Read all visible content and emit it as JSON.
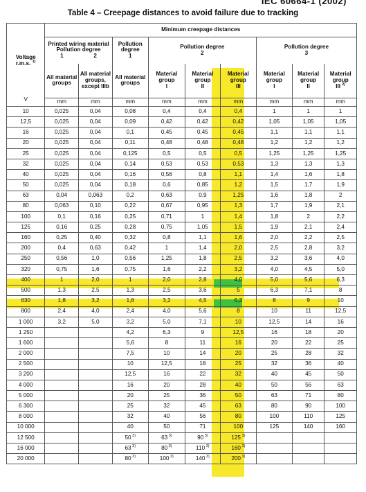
{
  "doc_id": "IEC 60664-1 (2002)",
  "title": "Table 4 – Creepage distances to avoid failure due to tracking",
  "header": {
    "voltage_label": "Voltage",
    "voltage_unit": "r.m.s.",
    "voltage_note": "1)",
    "minimum_label": "Minimum creepage distances",
    "printed_wiring": "Printed wiring material",
    "pollution_degree": "Pollution degree",
    "pd_col1": "1",
    "pd_col2": "2",
    "pollution_degree_1": "Pollution degree",
    "pd1": "1",
    "pollution_degree_2": "Pollution degree",
    "pd2": "2",
    "pollution_degree_3": "Pollution degree",
    "pd3": "3",
    "all_groups": "All material groups",
    "all_groups_except": "All material groups, except IIIb",
    "all_groups_pd1": "All material groups",
    "mg_label": "Material group",
    "mg_I": "I",
    "mg_II": "II",
    "mg_III": "III",
    "mg_III_note": "2)",
    "unit_v": "V",
    "unit_mm": "mm",
    "note3": "3)"
  },
  "rows": [
    [
      "10",
      "0,025",
      "0,04",
      "0,08",
      "0,4",
      "0,4",
      "0,4",
      "1",
      "1",
      "1"
    ],
    [
      "12,5",
      "0,025",
      "0,04",
      "0,09",
      "0,42",
      "0,42",
      "0,42",
      "1,05",
      "1,05",
      "1,05"
    ],
    [
      "16",
      "0,025",
      "0,04",
      "0,1",
      "0,45",
      "0,45",
      "0,45",
      "1,1",
      "1,1",
      "1,1"
    ],
    [
      "20",
      "0,025",
      "0,04",
      "0,11",
      "0,48",
      "0,48",
      "0,48",
      "1,2",
      "1,2",
      "1,2"
    ],
    [
      "25",
      "0,025",
      "0,04",
      "0,125",
      "0,5",
      "0,5",
      "0,5",
      "1,25",
      "1,25",
      "1,25"
    ],
    [
      "32",
      "0,025",
      "0,04",
      "0,14",
      "0,53",
      "0,53",
      "0,53",
      "1,3",
      "1,3",
      "1,3"
    ],
    [
      "40",
      "0,025",
      "0,04",
      "0,16",
      "0,56",
      "0,8",
      "1,1",
      "1,4",
      "1,6",
      "1,8"
    ],
    [
      "50",
      "0,025",
      "0,04",
      "0,18",
      "0,6",
      "0,85",
      "1,2",
      "1,5",
      "1,7",
      "1,9"
    ],
    [
      "63",
      "0,04",
      "0,063",
      "0,2",
      "0,63",
      "0,9",
      "1,25",
      "1,6",
      "1,8",
      "2"
    ],
    [
      "80",
      "0,063",
      "0,10",
      "0,22",
      "0,67",
      "0,95",
      "1,3",
      "1,7",
      "1,9",
      "2,1"
    ],
    [
      "100",
      "0,1",
      "0,16",
      "0,25",
      "0,71",
      "1",
      "1,4",
      "1,8",
      "2",
      "2,2"
    ],
    [
      "125",
      "0,16",
      "0,25",
      "0,28",
      "0,75",
      "1,05",
      "1,5",
      "1,9",
      "2,1",
      "2,4"
    ],
    [
      "160",
      "0,25",
      "0,40",
      "0,32",
      "0,8",
      "1,1",
      "1,6",
      "2,0",
      "2,2",
      "2,5"
    ],
    [
      "200",
      "0,4",
      "0,63",
      "0,42",
      "1",
      "1,4",
      "2,0",
      "2,5",
      "2,8",
      "3,2"
    ],
    [
      "250",
      "0,56",
      "1,0",
      "0,56",
      "1,25",
      "1,8",
      "2,5",
      "3,2",
      "3,6",
      "4,0"
    ],
    [
      "320",
      "0,75",
      "1,6",
      "0,75",
      "1,6",
      "2,2",
      "3,2",
      "4,0",
      "4,5",
      "5,0"
    ],
    [
      "400",
      "1",
      "2,0",
      "1",
      "2,0",
      "2,8",
      "4,0",
      "5,0",
      "5,6",
      "6,3"
    ],
    [
      "500",
      "1,3",
      "2,5",
      "1,3",
      "2,5",
      "3,6",
      "5",
      "6,3",
      "7,1",
      "8"
    ],
    [
      "630",
      "1,8",
      "3,2",
      "1,8",
      "3,2",
      "4,5",
      "6,3",
      "8",
      "9",
      "10"
    ],
    [
      "800",
      "2,4",
      "4,0",
      "2,4",
      "4,0",
      "5,6",
      "8",
      "10",
      "11",
      "12,5"
    ],
    [
      "1 000",
      "3,2",
      "5,0",
      "3,2",
      "5,0",
      "7,1",
      "10",
      "12,5",
      "14",
      "16"
    ],
    [
      "1 250",
      "",
      "",
      "4,2",
      "6,3",
      "9",
      "12,5",
      "16",
      "18",
      "20"
    ],
    [
      "1 600",
      "",
      "",
      "5,6",
      "8",
      "11",
      "16",
      "20",
      "22",
      "25"
    ],
    [
      "2 000",
      "",
      "",
      "7,5",
      "10",
      "14",
      "20",
      "25",
      "28",
      "32"
    ],
    [
      "2 500",
      "",
      "",
      "10",
      "12,5",
      "18",
      "25",
      "32",
      "36",
      "40"
    ],
    [
      "3 200",
      "",
      "",
      "12,5",
      "16",
      "22",
      "32",
      "40",
      "45",
      "50"
    ],
    [
      "4 000",
      "",
      "",
      "16",
      "20",
      "28",
      "40",
      "50",
      "56",
      "63"
    ],
    [
      "5 000",
      "",
      "",
      "20",
      "25",
      "36",
      "50",
      "63",
      "71",
      "80"
    ],
    [
      "6 300",
      "",
      "",
      "25",
      "32",
      "45",
      "63",
      "80",
      "90",
      "100"
    ],
    [
      "8 000",
      "",
      "",
      "32",
      "40",
      "56",
      "80",
      "100",
      "110",
      "125"
    ],
    [
      "10 000",
      "",
      "",
      "40",
      "50",
      "71",
      "100",
      "125",
      "140",
      "160"
    ],
    [
      "12 500",
      "",
      "",
      "50",
      "63",
      "90",
      "125",
      "",
      "",
      ""
    ],
    [
      "16 000",
      "",
      "",
      "63",
      "80",
      "110",
      "160",
      "",
      "",
      ""
    ],
    [
      "20 000",
      "",
      "",
      "80",
      "100",
      "140",
      "200",
      "",
      "",
      ""
    ]
  ],
  "highlight_color": "#f7e81e",
  "highlight_green": "#3fc33f"
}
